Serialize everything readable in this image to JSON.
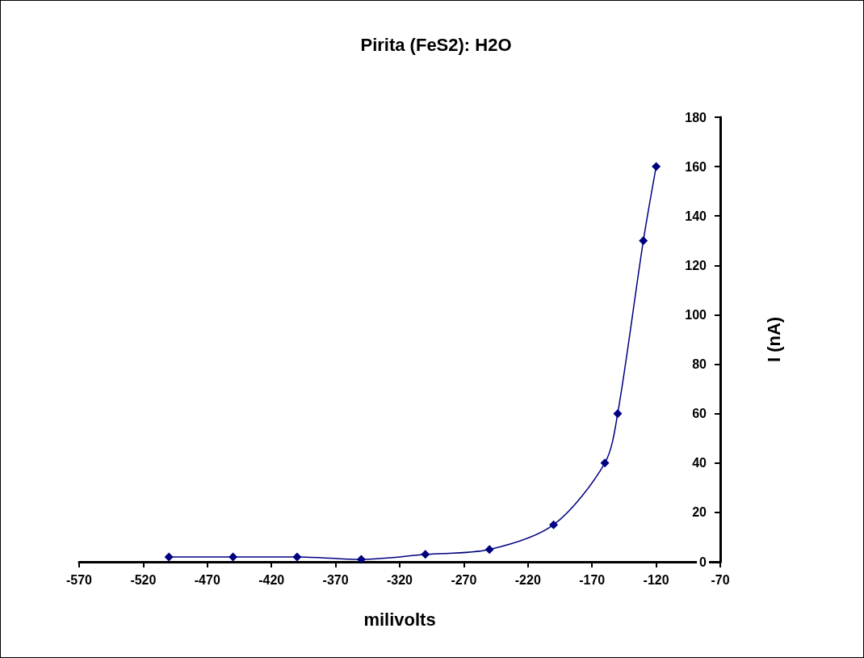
{
  "chart_data": {
    "type": "line",
    "title": "Pirita (FeS2): H2O",
    "xlabel": "milivolts",
    "ylabel": "I (nA)",
    "x": [
      -500,
      -450,
      -400,
      -350,
      -300,
      -250,
      -200,
      -160,
      -150,
      -130,
      -120
    ],
    "series": [
      {
        "color": "#000080",
        "values": [
          2,
          2,
          2,
          1,
          3,
          5,
          15,
          40,
          60,
          130,
          160
        ]
      }
    ],
    "xlim": [
      -570,
      -70
    ],
    "xticks": [
      -570,
      -520,
      -470,
      -420,
      -370,
      -320,
      -270,
      -220,
      -170,
      -120,
      -70
    ],
    "ylim": [
      0,
      180
    ],
    "yticks": [
      0,
      20,
      40,
      60,
      80,
      100,
      120,
      140,
      160,
      180
    ],
    "marker": "diamond",
    "grid": false
  }
}
